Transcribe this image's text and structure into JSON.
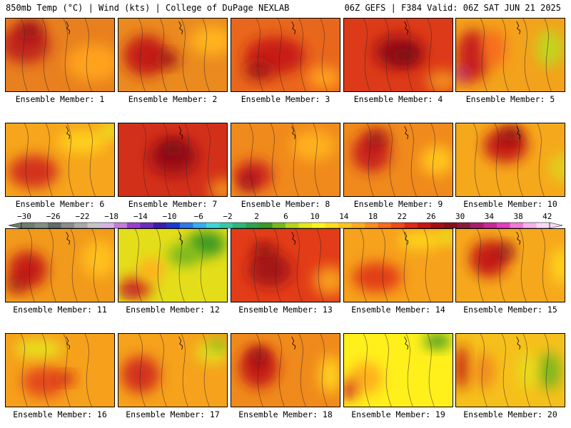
{
  "header": {
    "left": "850mb Temp (°C) | Wind (kts) | College of DuPage NEXLAB",
    "right": "06Z GEFS | F384 Valid: 06Z SAT JUN 21 2025"
  },
  "colorbar": {
    "labels": [
      "-30",
      "-26",
      "-22",
      "-18",
      "-14",
      "-10",
      "-6",
      "-2",
      "2",
      "6",
      "10",
      "14",
      "18",
      "22",
      "26",
      "30",
      "34",
      "38",
      "42"
    ],
    "colors": [
      "#6e7d6e",
      "#7f8f80",
      "#5f6c6a",
      "#8b8b8b",
      "#a9a9a9",
      "#c5c5c5",
      "#d8b2e6",
      "#c37bd8",
      "#9a3fcd",
      "#6e2bc0",
      "#3a1fae",
      "#1b3ad2",
      "#2e79e6",
      "#35aef0",
      "#3dd6d8",
      "#35c9a6",
      "#2fb57a",
      "#2ea24c",
      "#3c9a22",
      "#79b81c",
      "#b8d21a",
      "#e4e619",
      "#fff21c",
      "#ffdc1c",
      "#ffc41c",
      "#ffaa1c",
      "#ff8c1c",
      "#f86a1a",
      "#ee4a18",
      "#dc2a16",
      "#c41616",
      "#a50e12",
      "#85101a",
      "#8a1a3c",
      "#a81e6a",
      "#c82896",
      "#e23cc0",
      "#f07ad8",
      "#f5b2ea",
      "#f8d8f2"
    ]
  },
  "panels": [
    {
      "label": "Ensemble Member: 1",
      "base": "#e8801f",
      "blobs": [
        [
          "#c0251a",
          0.18,
          0.35,
          0.45,
          0.5
        ],
        [
          "#9c1014",
          0.22,
          0.15,
          0.22,
          0.25
        ],
        [
          "#ffa21c",
          0.8,
          0.6,
          0.5,
          0.5
        ]
      ]
    },
    {
      "label": "Ensemble Member: 2",
      "base": "#ea8a1f",
      "blobs": [
        [
          "#c41f18",
          0.25,
          0.5,
          0.4,
          0.55
        ],
        [
          "#9d1214",
          0.45,
          0.55,
          0.2,
          0.2
        ],
        [
          "#ffb21c",
          0.85,
          0.3,
          0.4,
          0.4
        ]
      ]
    },
    {
      "label": "Ensemble Member: 3",
      "base": "#e9671c",
      "blobs": [
        [
          "#c81e18",
          0.4,
          0.5,
          0.55,
          0.5
        ],
        [
          "#a41414",
          0.25,
          0.7,
          0.25,
          0.25
        ],
        [
          "#ffa01c",
          0.85,
          0.8,
          0.3,
          0.3
        ]
      ]
    },
    {
      "label": "Ensemble Member: 4",
      "base": "#dc3a18",
      "blobs": [
        [
          "#9e1014",
          0.5,
          0.45,
          0.45,
          0.45
        ],
        [
          "#7a1016",
          0.55,
          0.5,
          0.25,
          0.2
        ],
        [
          "#f08c1c",
          0.9,
          0.85,
          0.3,
          0.3
        ]
      ]
    },
    {
      "label": "Ensemble Member: 5",
      "base": "#f3a21c",
      "blobs": [
        [
          "#c8201a",
          0.15,
          0.5,
          0.3,
          0.7
        ],
        [
          "#b8208a",
          0.05,
          0.75,
          0.12,
          0.2
        ],
        [
          "#c2d41a",
          0.85,
          0.4,
          0.25,
          0.5
        ],
        [
          "#f86c1a",
          0.35,
          0.4,
          0.2,
          0.5
        ]
      ]
    },
    {
      "label": "Ensemble Member: 6",
      "base": "#f6a51c",
      "blobs": [
        [
          "#d3301a",
          0.25,
          0.65,
          0.45,
          0.45
        ],
        [
          "#ffd01c",
          0.7,
          0.25,
          0.45,
          0.3
        ],
        [
          "#e8e61a",
          0.95,
          0.1,
          0.2,
          0.2
        ]
      ]
    },
    {
      "label": "Ensemble Member: 7",
      "base": "#d3301a",
      "blobs": [
        [
          "#9e1014",
          0.5,
          0.45,
          0.45,
          0.5
        ],
        [
          "#7a1016",
          0.5,
          0.35,
          0.2,
          0.2
        ],
        [
          "#f08c1c",
          0.95,
          0.9,
          0.25,
          0.3
        ]
      ]
    },
    {
      "label": "Ensemble Member: 8",
      "base": "#f08a1c",
      "blobs": [
        [
          "#c8201a",
          0.2,
          0.7,
          0.35,
          0.4
        ],
        [
          "#8a1020",
          0.15,
          0.8,
          0.12,
          0.18
        ],
        [
          "#ffb01c",
          0.75,
          0.3,
          0.4,
          0.4
        ]
      ]
    },
    {
      "label": "Ensemble Member: 9",
      "base": "#f08a1c",
      "blobs": [
        [
          "#c8201a",
          0.25,
          0.4,
          0.35,
          0.5
        ],
        [
          "#9a1018",
          0.3,
          0.2,
          0.2,
          0.2
        ],
        [
          "#ffc41c",
          0.85,
          0.5,
          0.3,
          0.4
        ]
      ]
    },
    {
      "label": "Ensemble Member: 10",
      "base": "#f6a81c",
      "blobs": [
        [
          "#c41f18",
          0.45,
          0.3,
          0.4,
          0.45
        ],
        [
          "#8a1018",
          0.5,
          0.15,
          0.2,
          0.2
        ],
        [
          "#e0d01a",
          0.95,
          0.6,
          0.2,
          0.4
        ]
      ]
    },
    {
      "label": "Ensemble Member: 11",
      "base": "#f29a1c",
      "blobs": [
        [
          "#c41f18",
          0.2,
          0.55,
          0.35,
          0.5
        ],
        [
          "#9a1018",
          0.1,
          0.75,
          0.15,
          0.2
        ],
        [
          "#ffc01c",
          0.85,
          0.4,
          0.3,
          0.5
        ]
      ]
    },
    {
      "label": "Ensemble Member: 12",
      "base": "#e4de1a",
      "blobs": [
        [
          "#3c9a22",
          0.8,
          0.2,
          0.35,
          0.35
        ],
        [
          "#79b81c",
          0.6,
          0.35,
          0.3,
          0.3
        ],
        [
          "#d3301a",
          0.15,
          0.8,
          0.3,
          0.3
        ],
        [
          "#a01a5a",
          0.1,
          0.85,
          0.1,
          0.1
        ],
        [
          "#ffb01c",
          0.3,
          0.55,
          0.25,
          0.3
        ]
      ]
    },
    {
      "label": "Ensemble Member: 13",
      "base": "#e23c18",
      "blobs": [
        [
          "#a51414",
          0.35,
          0.55,
          0.4,
          0.45
        ],
        [
          "#8a1018",
          0.3,
          0.3,
          0.2,
          0.2
        ],
        [
          "#f69a1c",
          0.9,
          0.7,
          0.3,
          0.4
        ]
      ]
    },
    {
      "label": "Ensemble Member: 14",
      "base": "#f6a21c",
      "blobs": [
        [
          "#e23c18",
          0.3,
          0.65,
          0.45,
          0.4
        ],
        [
          "#ffd41c",
          0.7,
          0.15,
          0.4,
          0.25
        ],
        [
          "#e8e61a",
          0.95,
          0.1,
          0.2,
          0.2
        ]
      ]
    },
    {
      "label": "Ensemble Member: 15",
      "base": "#f6a81c",
      "blobs": [
        [
          "#c41f18",
          0.3,
          0.4,
          0.35,
          0.5
        ],
        [
          "#8a1020",
          0.45,
          0.3,
          0.15,
          0.2
        ],
        [
          "#ffd81c",
          0.95,
          0.5,
          0.15,
          0.5
        ]
      ]
    },
    {
      "label": "Ensemble Member: 16",
      "base": "#f6a01c",
      "blobs": [
        [
          "#e4481a",
          0.35,
          0.65,
          0.4,
          0.4
        ],
        [
          "#e8e01a",
          0.3,
          0.2,
          0.45,
          0.25
        ],
        [
          "#c41f18",
          0.55,
          0.6,
          0.15,
          0.15
        ]
      ]
    },
    {
      "label": "Ensemble Member: 17",
      "base": "#f6a21c",
      "blobs": [
        [
          "#d3301a",
          0.2,
          0.55,
          0.35,
          0.5
        ],
        [
          "#e4de1a",
          0.85,
          0.25,
          0.3,
          0.3
        ],
        [
          "#79b81c",
          0.9,
          0.15,
          0.15,
          0.15
        ]
      ]
    },
    {
      "label": "Ensemble Member: 18",
      "base": "#f08a1c",
      "blobs": [
        [
          "#c41f18",
          0.25,
          0.45,
          0.35,
          0.55
        ],
        [
          "#8a1018",
          0.25,
          0.3,
          0.15,
          0.2
        ],
        [
          "#ffd01c",
          0.9,
          0.55,
          0.2,
          0.5
        ]
      ]
    },
    {
      "label": "Ensemble Member: 19",
      "base": "#fff01c",
      "blobs": [
        [
          "#ffb01c",
          0.2,
          0.6,
          0.3,
          0.45
        ],
        [
          "#d3301a",
          0.05,
          0.75,
          0.12,
          0.3
        ],
        [
          "#b8207a",
          0.03,
          0.8,
          0.05,
          0.1
        ],
        [
          "#3c9a22",
          0.85,
          0.1,
          0.25,
          0.2
        ]
      ]
    },
    {
      "label": "Ensemble Member: 20",
      "base": "#f6c01c",
      "blobs": [
        [
          "#c41f18",
          0.05,
          0.45,
          0.12,
          0.6
        ],
        [
          "#f08a1c",
          0.25,
          0.5,
          0.2,
          0.5
        ],
        [
          "#79b81c",
          0.85,
          0.5,
          0.2,
          0.5
        ],
        [
          "#e4e01a",
          0.65,
          0.5,
          0.15,
          0.5
        ]
      ]
    }
  ]
}
